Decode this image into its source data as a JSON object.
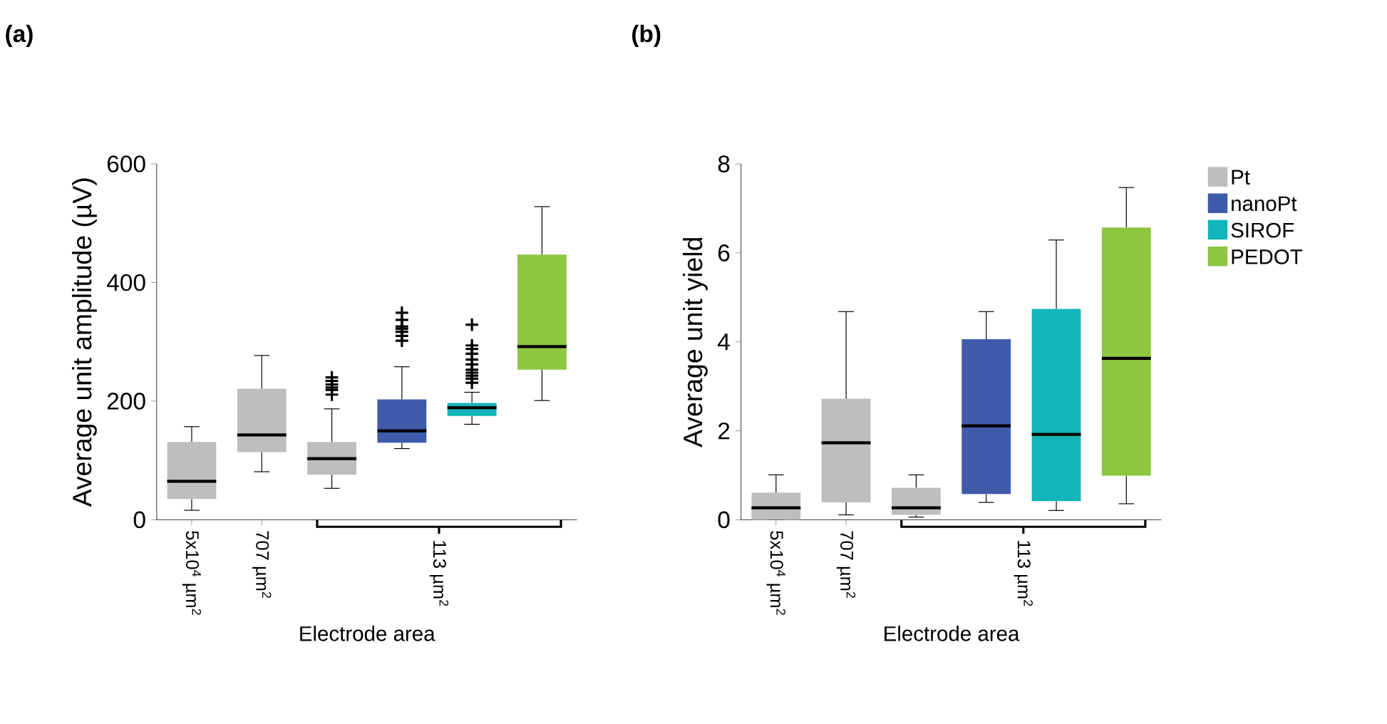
{
  "chart_data": [
    {
      "type": "box",
      "title": "(a)",
      "xlabel": "Electrode area",
      "ylabel": "Average unit amplitude (µV)",
      "categories": [
        "5x10$^{4}$ µm$^{2}$",
        "707 µm$^{2}$",
        null,
        null,
        null,
        null
      ],
      "ylim": [
        0,
        600
      ],
      "yticks": [
        0,
        200,
        400,
        600
      ],
      "marker": "cross",
      "legend": false,
      "annotations": [
        "113 µm$^{2}$"
      ],
      "series": [
        {
          "color": "#bebebe",
          "boxes": [
            {
              "low": 16,
              "q1": 35,
              "median": 65,
              "q3": 131,
              "high": 157
            },
            {
              "low": 81,
              "q1": 114,
              "median": 143,
              "q3": 221,
              "high": 277
            },
            {
              "low": 53,
              "q1": 76,
              "median": 103,
              "q3": 131,
              "high": 187,
              "outliers": [
                211,
                219,
                223,
                228,
                234,
                240
              ]
            },
            null,
            null,
            null
          ]
        },
        {
          "color": "#3f5aa9",
          "boxes": [
            null,
            null,
            null,
            {
              "low": 120,
              "q1": 130,
              "median": 150,
              "q3": 203,
              "high": 258,
              "outliers": [
                302,
                310,
                317,
                322,
                326,
                337,
                349
              ]
            },
            null,
            null
          ]
        },
        {
          "color": "#12b5b9",
          "boxes": [
            null,
            null,
            null,
            null,
            {
              "low": 161,
              "q1": 175,
              "median": 189,
              "q3": 197,
              "high": 215,
              "outliers": [
                231,
                238,
                243,
                248,
                253,
                262,
                270,
                280,
                288,
                294,
                329
              ]
            },
            null
          ]
        },
        {
          "color": "#8dc63f",
          "boxes": [
            null,
            null,
            null,
            null,
            null,
            {
              "low": 201,
              "q1": 253,
              "median": 292,
              "q3": 447,
              "high": 528
            }
          ]
        }
      ]
    },
    {
      "type": "box",
      "title": "(b)",
      "xlabel": "Electrode area",
      "ylabel": "Average unit yield",
      "categories": [
        "5x10$^{4}$ µm$^{2}$",
        "707 µm$^{2}$",
        null,
        null,
        null,
        null
      ],
      "ylim": [
        0,
        8
      ],
      "yticks": [
        0,
        2,
        4,
        6,
        8
      ],
      "legend": "right",
      "annotations": [
        "113 µm$^{2}$"
      ],
      "series": [
        {
          "name": "Pt",
          "color": "#bebebe",
          "boxes": [
            {
              "low": 0,
              "q1": 0,
              "median": 0.27,
              "q3": 0.61,
              "high": 1.01
            },
            {
              "low": 0.11,
              "q1": 0.39,
              "median": 1.73,
              "q3": 2.72,
              "high": 4.68
            },
            {
              "low": 0.06,
              "q1": 0.11,
              "median": 0.27,
              "q3": 0.72,
              "high": 1.01
            },
            null,
            null,
            null
          ]
        },
        {
          "name": "nanoPt",
          "color": "#3f5aa9",
          "boxes": [
            null,
            null,
            null,
            {
              "low": 0.39,
              "q1": 0.58,
              "median": 2.11,
              "q3": 4.06,
              "high": 4.68
            },
            null,
            null
          ]
        },
        {
          "name": "SIROF",
          "color": "#12b5b9",
          "boxes": [
            null,
            null,
            null,
            null,
            {
              "low": 0.21,
              "q1": 0.42,
              "median": 1.92,
              "q3": 4.74,
              "high": 6.29
            },
            null
          ]
        },
        {
          "name": "PEDOT",
          "color": "#8dc63f",
          "boxes": [
            null,
            null,
            null,
            null,
            null,
            {
              "low": 0.36,
              "q1": 0.99,
              "median": 3.63,
              "q3": 6.57,
              "high": 7.47
            }
          ]
        }
      ]
    }
  ]
}
